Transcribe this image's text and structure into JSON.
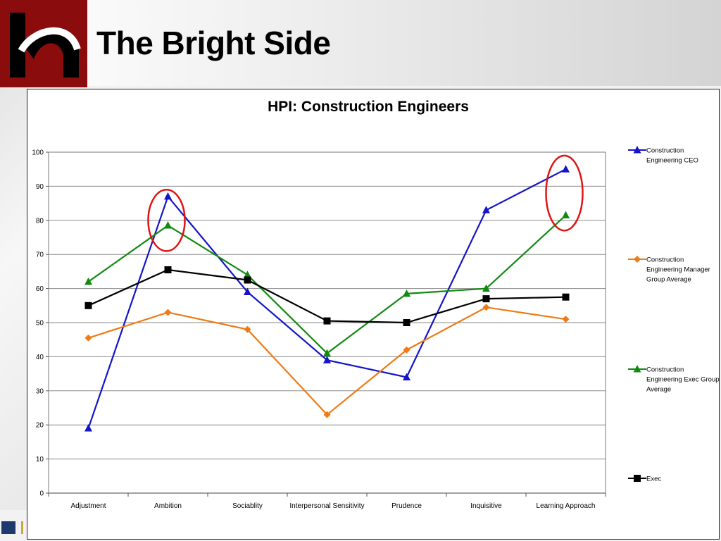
{
  "slide": {
    "title": "The Bright Side"
  },
  "colors": {
    "ceo": "#1414c8",
    "manager": "#f07a14",
    "exec_avg": "#118a11",
    "exec": "#000000",
    "highlight_circle": "#e01414",
    "logo_red": "#7a0b0b"
  },
  "chart_data": {
    "type": "line",
    "title": "HPI:  Construction Engineers",
    "categories": [
      "Adjustment",
      "Ambition",
      "Sociablity",
      "Interpersonal Sensitivity",
      "Prudence",
      "Inquisitive",
      "Learning Approach"
    ],
    "ylim": [
      0,
      100
    ],
    "yticks": [
      0,
      10,
      20,
      30,
      40,
      50,
      60,
      70,
      80,
      90,
      100
    ],
    "grid": true,
    "legend_position": "right",
    "series": [
      {
        "name": "Construction Engineering CEO",
        "marker": "triangle",
        "color": "#1414c8",
        "values": [
          19,
          87,
          59,
          39,
          34,
          83,
          95
        ]
      },
      {
        "name": "Construction Engineering Manager Group Average",
        "marker": "diamond",
        "color": "#f07a14",
        "values": [
          45.5,
          53,
          48,
          23,
          42,
          54.5,
          51
        ]
      },
      {
        "name": "Construction Engineering Exec Group Average",
        "marker": "triangle",
        "color": "#118a11",
        "values": [
          62,
          78.5,
          64,
          41,
          58.5,
          60,
          81.5
        ]
      },
      {
        "name": "Exec",
        "marker": "square",
        "color": "#000000",
        "values": [
          55,
          65.5,
          62.5,
          50.5,
          50,
          57,
          57.5
        ]
      }
    ],
    "highlights": [
      {
        "category": "Ambition",
        "y_range": [
          71,
          89
        ]
      },
      {
        "category": "Learning Approach",
        "y_range": [
          77,
          99
        ]
      }
    ]
  }
}
